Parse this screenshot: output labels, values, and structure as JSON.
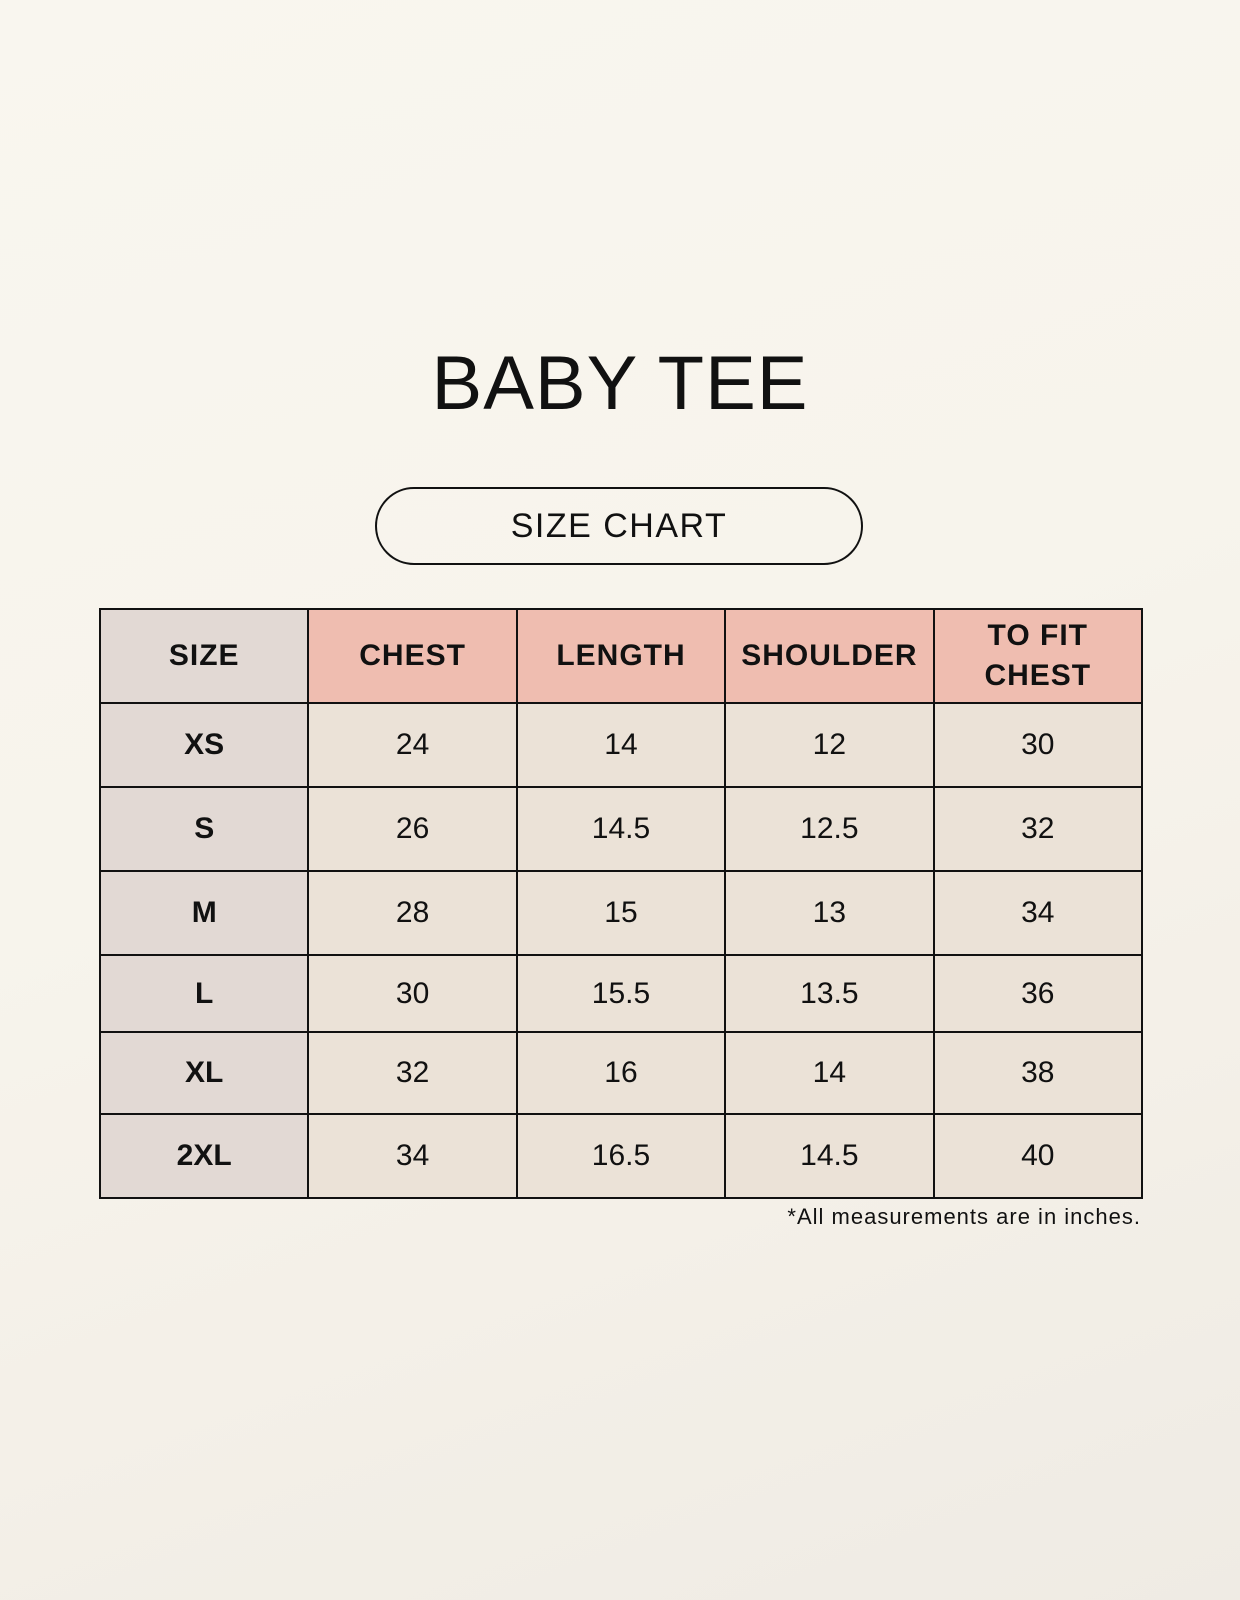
{
  "title": "BABY TEE",
  "subtitle": "SIZE CHART",
  "colors": {
    "header": "#efbdb0",
    "size_column": "#e2d9d4",
    "cell": "#ebe2d7"
  },
  "table": {
    "headers": [
      "SIZE",
      "CHEST",
      "LENGTH",
      "SHOULDER",
      "TO FIT CHEST"
    ],
    "rows": [
      [
        "XS",
        "24",
        "14",
        "12",
        "30"
      ],
      [
        "S",
        "26",
        "14.5",
        "12.5",
        "32"
      ],
      [
        "M",
        "28",
        "15",
        "13",
        "34"
      ],
      [
        "L",
        "30",
        "15.5",
        "13.5",
        "36"
      ],
      [
        "XL",
        "32",
        "16",
        "14",
        "38"
      ],
      [
        "2XL",
        "34",
        "16.5",
        "14.5",
        "40"
      ]
    ]
  },
  "note": "*All measurements are in inches."
}
